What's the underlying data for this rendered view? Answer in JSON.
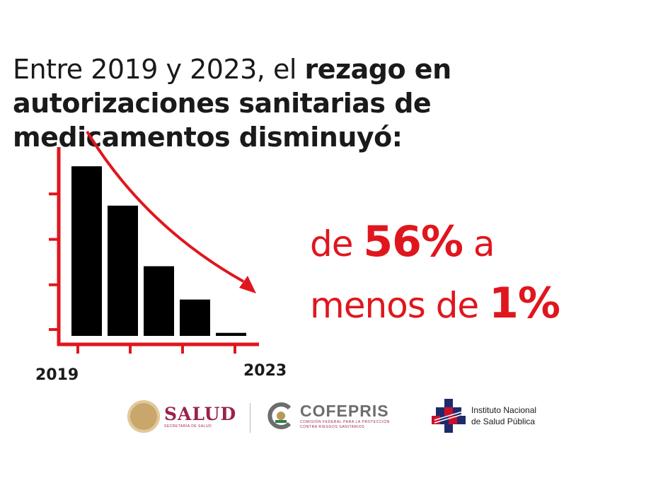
{
  "headline": {
    "part1": "Entre 2019 y 2023, el ",
    "part2_bold": "rezago en autorizaciones sanitarias de medicamentos disminuyó:"
  },
  "stat": {
    "line1_prefix": "de ",
    "line1_value": "56%",
    "line1_suffix": " a",
    "line2_prefix": "menos de ",
    "line2_value": "1%"
  },
  "chart_data": {
    "type": "bar",
    "categories": [
      "2019",
      "",
      "",
      "",
      "2023"
    ],
    "tick_labels": [
      "2019",
      "2023"
    ],
    "values": [
      56,
      43,
      23,
      12,
      1
    ],
    "ylim": [
      0,
      60
    ],
    "grid": false,
    "trend_arrow": "decreasing",
    "colors": {
      "bars": "#000000",
      "axes": "#e0161e",
      "arrow": "#e0161e"
    }
  },
  "logos": {
    "salud": {
      "name": "SALUD",
      "subtitle": "SECRETARÍA DE SALUD"
    },
    "cofepris": {
      "name": "COFEPRIS",
      "subtitle_line1": "COMISIÓN FEDERAL PARA LA PROTECCIÓN",
      "subtitle_line2": "CONTRA RIESGOS SANITARIOS"
    },
    "insp": {
      "line1": "Instituto Nacional",
      "line2": "de Salud Pública"
    }
  },
  "colors": {
    "accent_red": "#e0161e",
    "salud_maroon": "#9b2247",
    "text": "#1a1a1a"
  }
}
